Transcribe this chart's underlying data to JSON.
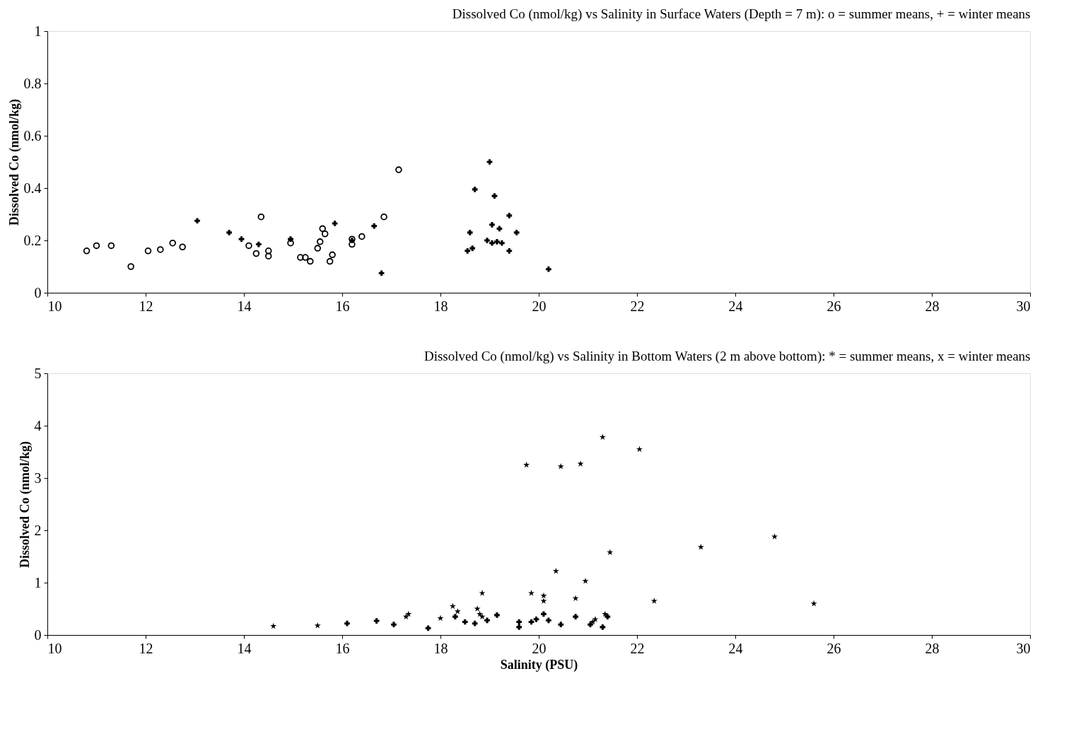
{
  "chart_data": [
    {
      "type": "scatter",
      "title": "Dissolved Co (nmol/kg) vs Salinity in Surface Waters (Depth = 7 m): o = summer means, + = winter means",
      "ylabel": "Dissolved Co (nmol/kg)",
      "xlim": [
        10,
        30
      ],
      "xticks": [
        10,
        12,
        14,
        16,
        18,
        20,
        22,
        24,
        26,
        28,
        30
      ],
      "ylim": [
        0,
        1
      ],
      "yticks": [
        0,
        0.2,
        0.4,
        0.6,
        0.8,
        1
      ],
      "grid": false,
      "legend": false,
      "series": [
        {
          "color": "#000000",
          "marker": "circle",
          "x": [
            10.8,
            11.0,
            11.3,
            11.7,
            12.05,
            12.3,
            12.55,
            12.75,
            14.1,
            14.25,
            14.35,
            14.5,
            14.5,
            14.95,
            15.15,
            15.25,
            15.35,
            15.5,
            15.55,
            15.6,
            15.65,
            15.75,
            15.8,
            16.2,
            16.2,
            16.4,
            16.85,
            17.15
          ],
          "values": [
            0.16,
            0.18,
            0.18,
            0.1,
            0.16,
            0.165,
            0.19,
            0.175,
            0.18,
            0.15,
            0.29,
            0.14,
            0.16,
            0.19,
            0.135,
            0.135,
            0.12,
            0.17,
            0.195,
            0.245,
            0.225,
            0.12,
            0.145,
            0.185,
            0.205,
            0.215,
            0.29,
            0.47
          ]
        },
        {
          "color": "#000000",
          "marker": "cross",
          "x": [
            13.05,
            13.7,
            13.95,
            14.3,
            14.95,
            15.85,
            16.2,
            16.65,
            16.8,
            18.55,
            18.6,
            18.65,
            18.7,
            18.95,
            19.0,
            19.05,
            19.05,
            19.1,
            19.15,
            19.2,
            19.25,
            19.4,
            19.4,
            19.55,
            20.2
          ],
          "values": [
            0.275,
            0.23,
            0.205,
            0.185,
            0.205,
            0.265,
            0.2,
            0.255,
            0.075,
            0.16,
            0.23,
            0.17,
            0.395,
            0.2,
            0.5,
            0.26,
            0.19,
            0.37,
            0.195,
            0.245,
            0.19,
            0.295,
            0.16,
            0.23,
            0.09
          ]
        }
      ]
    },
    {
      "type": "scatter",
      "title": "Dissolved Co (nmol/kg) vs Salinity in Bottom Waters (2 m above bottom): * = summer means, x = winter means",
      "xlabel": "Salinity (PSU)",
      "ylabel": "Dissolved Co (nmol/kg)",
      "xlim": [
        10,
        30
      ],
      "xticks": [
        10,
        12,
        14,
        16,
        18,
        20,
        22,
        24,
        26,
        28,
        30
      ],
      "ylim": [
        0,
        5
      ],
      "yticks": [
        0,
        1,
        2,
        3,
        4,
        5
      ],
      "grid": false,
      "legend": false,
      "series": [
        {
          "color": "#000000",
          "marker": "star",
          "x": [
            14.6,
            15.5,
            17.3,
            17.35,
            18.0,
            18.25,
            18.35,
            18.75,
            18.8,
            18.85,
            18.85,
            19.85,
            20.1,
            20.1,
            20.75,
            21.1,
            21.15,
            21.35,
            20.35,
            20.95,
            21.45,
            19.75,
            20.45,
            20.85,
            21.3,
            22.05,
            22.35,
            23.3,
            24.8,
            25.6
          ],
          "values": [
            0.17,
            0.18,
            0.35,
            0.4,
            0.32,
            0.55,
            0.45,
            0.5,
            0.4,
            0.8,
            0.35,
            0.8,
            0.65,
            0.75,
            0.7,
            0.25,
            0.3,
            0.4,
            1.22,
            1.03,
            1.58,
            3.25,
            3.22,
            3.27,
            3.78,
            3.55,
            0.65,
            1.68,
            1.88,
            0.6
          ]
        },
        {
          "color": "#000000",
          "marker": "cross",
          "x": [
            16.1,
            16.7,
            17.05,
            17.75,
            18.3,
            18.5,
            18.7,
            18.95,
            19.15,
            19.6,
            19.6,
            19.85,
            19.95,
            20.1,
            20.2,
            20.45,
            20.75,
            21.05,
            21.3,
            21.4
          ],
          "values": [
            0.22,
            0.27,
            0.2,
            0.13,
            0.35,
            0.25,
            0.22,
            0.28,
            0.38,
            0.25,
            0.15,
            0.25,
            0.3,
            0.4,
            0.28,
            0.2,
            0.35,
            0.2,
            0.15,
            0.35
          ]
        }
      ]
    }
  ]
}
